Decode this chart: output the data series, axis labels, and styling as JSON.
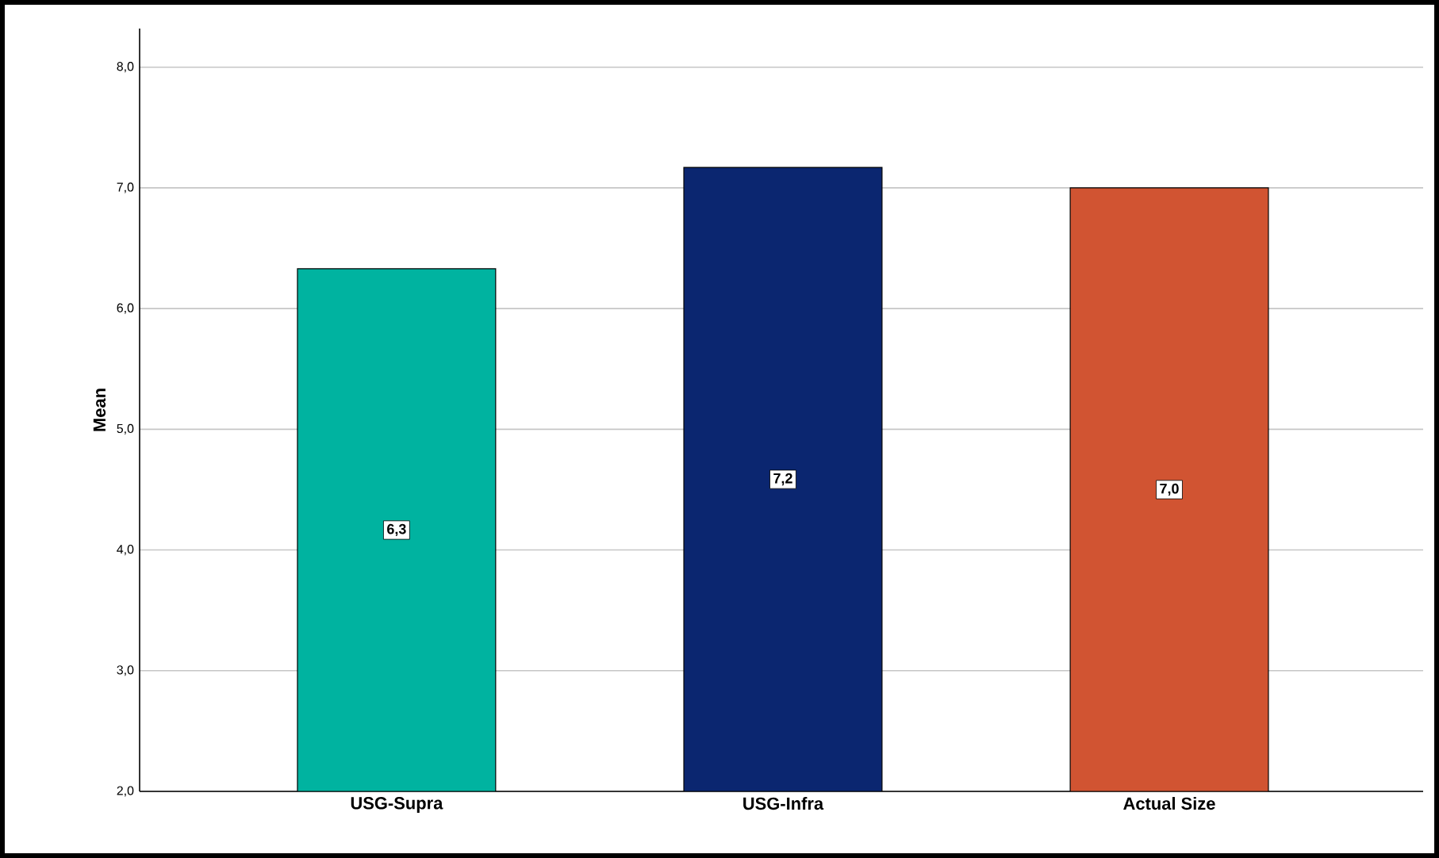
{
  "chart_data": {
    "type": "bar",
    "ylabel": "Mean",
    "categories": [
      "USG-Supra",
      "USG-Infra",
      "Actual Size"
    ],
    "values": [
      6.33,
      7.17,
      7.0
    ],
    "value_labels": [
      "6,3",
      "7,2",
      "7,0"
    ],
    "colors": [
      "#00b3a0",
      "#0b2670",
      "#d15432"
    ],
    "ylim": [
      2,
      8.32
    ],
    "yticks": [
      {
        "value": 2,
        "label": "2,0"
      },
      {
        "value": 3,
        "label": "3,0"
      },
      {
        "value": 4,
        "label": "4,0"
      },
      {
        "value": 5,
        "label": "5,0"
      },
      {
        "value": 6,
        "label": "6,0"
      },
      {
        "value": 7,
        "label": "7,0"
      },
      {
        "value": 8,
        "label": "8,0"
      }
    ],
    "grid": "y"
  }
}
